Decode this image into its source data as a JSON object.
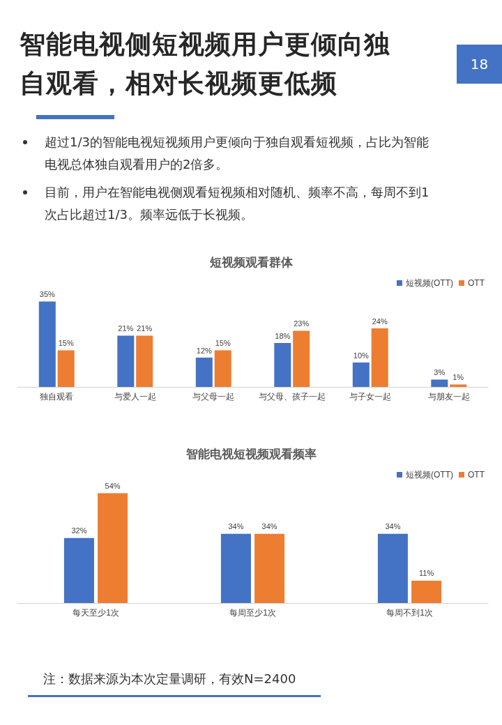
{
  "chart_data": [
    {
      "type": "bar",
      "title": "短视频观看群体",
      "categories": [
        "独自观看",
        "与爱人一起",
        "与父母一起",
        "与父母、孩子一起",
        "与子女一起",
        "与朋友一起"
      ],
      "series": [
        {
          "name": "短视频(OTT)",
          "color": "#4472c4",
          "values": [
            35,
            21,
            12,
            18,
            10,
            3
          ],
          "value_labels": [
            "35%",
            "21%",
            "12%",
            "18%",
            "10%",
            "3%"
          ]
        },
        {
          "name": "OTT",
          "color": "#ed7d31",
          "values": [
            15,
            21,
            15,
            23,
            24,
            1
          ],
          "value_labels": [
            "15%",
            "21%",
            "15%",
            "23%",
            "24%",
            "1%"
          ]
        }
      ],
      "legend": "top right",
      "annotations": [
        "智能电视侧短视频用户更倾向独自观看，相对长视频更低频",
        "18",
        "超过1/3的智能电视短视频用户更倾向于独自观看短视频，占比为智能电视总体独自观看用户的2倍多。",
        "目前，用户在智能电视侧观看短视频相对随机、频率不高，每周不到1次占比超过1/3。频率远低于长视频。"
      ]
    },
    {
      "type": "bar",
      "title": "智能电视短视频观看频率",
      "categories": [
        "每天至少1次",
        "每周至少1次",
        "每周不到1次"
      ],
      "series": [
        {
          "name": "短视频(OTT)",
          "color": "#4472c4",
          "values": [
            32,
            34,
            34
          ],
          "value_labels": [
            "32%",
            "34%",
            "34%"
          ]
        },
        {
          "name": "OTT",
          "color": "#ed7d31",
          "values": [
            54,
            34,
            11
          ],
          "value_labels": [
            "54%",
            "34%",
            "11%"
          ]
        }
      ],
      "legend": "top right",
      "annotations": [
        "注：数据来源为本次定量调研，有效N=2400"
      ]
    }
  ]
}
